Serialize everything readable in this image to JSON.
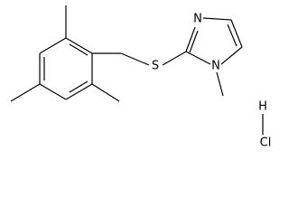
{
  "atoms": {
    "sulfur": "S",
    "ring_n_top": "N",
    "ring_n_methyl": "N",
    "hydrogen": "H",
    "chlorine": "Cl"
  }
}
